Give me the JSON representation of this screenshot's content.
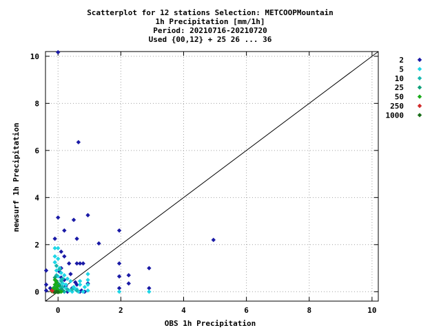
{
  "chart_data": {
    "type": "scatter",
    "title": [
      "Scatterplot for   12 stations Selection: METCOOPMountain",
      "1h Precipitation [mm/1h]",
      "Period: 20210716-20210720",
      "Used {00,12} + 25 26 ... 36"
    ],
    "xlabel": "OBS 1h Precipitation",
    "ylabel": "newsurf 1h Precipitation",
    "xlim": [
      -0.4,
      10.2
    ],
    "ylim": [
      -0.4,
      10.2
    ],
    "xticks": [
      0,
      2,
      4,
      6,
      8,
      10
    ],
    "yticks": [
      0,
      2,
      4,
      6,
      8,
      10
    ],
    "grid": true,
    "legend_position": "right-outside",
    "reference_line": "y = x",
    "series": [
      {
        "name": "2",
        "color": "#1a1aa6",
        "points": [
          [
            0,
            10.2
          ],
          [
            0.65,
            6.35
          ],
          [
            0,
            3.15
          ],
          [
            0.95,
            3.25
          ],
          [
            0.5,
            3.05
          ],
          [
            0.2,
            2.6
          ],
          [
            1.95,
            2.6
          ],
          [
            -0.1,
            2.25
          ],
          [
            0.6,
            2.25
          ],
          [
            1.3,
            2.05
          ],
          [
            4.95,
            2.2
          ],
          [
            0.1,
            1.7
          ],
          [
            0.2,
            1.5
          ],
          [
            0.6,
            1.2
          ],
          [
            0.7,
            1.2
          ],
          [
            0.8,
            1.2
          ],
          [
            1.95,
            1.2
          ],
          [
            0.35,
            1.2
          ],
          [
            0.1,
            1.0
          ],
          [
            2.9,
            1.0
          ],
          [
            0.05,
            0.85
          ],
          [
            0.4,
            0.75
          ],
          [
            0.1,
            0.6
          ],
          [
            2.25,
            0.7
          ],
          [
            1.95,
            0.65
          ],
          [
            0.2,
            0.5
          ],
          [
            0.55,
            0.4
          ],
          [
            2.25,
            0.35
          ],
          [
            0.95,
            0.35
          ],
          [
            -0.4,
            0.9
          ],
          [
            -0.4,
            0.3
          ],
          [
            -0.25,
            0.15
          ],
          [
            -0.15,
            0.05
          ],
          [
            0.15,
            0.05
          ],
          [
            0.75,
            0.05
          ],
          [
            0.85,
            0.0
          ],
          [
            1.95,
            0.15
          ],
          [
            2.9,
            0.15
          ],
          [
            0.45,
            0.15
          ],
          [
            0.6,
            0.3
          ],
          [
            0.7,
            0.0
          ],
          [
            -0.05,
            0.45
          ],
          [
            0.25,
            0.25
          ],
          [
            -0.45,
            0.05
          ],
          [
            0.05,
            0.25
          ],
          [
            0.3,
            0.0
          ]
        ]
      },
      {
        "name": "5",
        "color": "#1fd6e6",
        "points": [
          [
            -0.1,
            1.85
          ],
          [
            0.0,
            1.85
          ],
          [
            -0.1,
            1.5
          ],
          [
            0.0,
            1.4
          ],
          [
            -0.1,
            1.25
          ],
          [
            0.05,
            1.0
          ],
          [
            -0.05,
            0.9
          ],
          [
            0.1,
            0.8
          ],
          [
            0.2,
            0.7
          ],
          [
            0.0,
            0.65
          ],
          [
            0.3,
            0.55
          ],
          [
            0.1,
            0.5
          ],
          [
            0.4,
            0.45
          ],
          [
            0.7,
            0.45
          ],
          [
            0.95,
            0.75
          ],
          [
            0.95,
            0.5
          ],
          [
            0.95,
            0.3
          ],
          [
            0.85,
            0.2
          ],
          [
            0.25,
            0.15
          ],
          [
            0.55,
            0.1
          ],
          [
            0.35,
            0.05
          ],
          [
            0.65,
            0.0
          ],
          [
            0.95,
            0.05
          ],
          [
            0.2,
            0.0
          ],
          [
            0.45,
            0.0
          ],
          [
            2.9,
            0.0
          ],
          [
            1.95,
            0.0
          ],
          [
            0.1,
            0.2
          ],
          [
            0.8,
            0.0
          ],
          [
            0.5,
            0.2
          ],
          [
            0.6,
            0.1
          ],
          [
            0.15,
            0.35
          ],
          [
            0.25,
            0.3
          ],
          [
            0.7,
            0.3
          ]
        ]
      },
      {
        "name": "10",
        "color": "#17b8b0",
        "points": [
          [
            -0.05,
            1.1
          ],
          [
            0.05,
            0.95
          ],
          [
            -0.05,
            0.7
          ],
          [
            0.1,
            0.45
          ],
          [
            0.05,
            0.3
          ],
          [
            0.15,
            0.2
          ],
          [
            0.3,
            0.1
          ],
          [
            0.05,
            0.05
          ],
          [
            0.45,
            0.1
          ],
          [
            0.2,
            0.0
          ],
          [
            0.6,
            0.05
          ],
          [
            0.15,
            0.55
          ]
        ]
      },
      {
        "name": "25",
        "color": "#0fa079",
        "points": [
          [
            -0.1,
            0.6
          ],
          [
            -0.05,
            0.45
          ],
          [
            0.0,
            0.35
          ],
          [
            0.05,
            0.25
          ],
          [
            -0.1,
            0.2
          ],
          [
            0.0,
            0.1
          ],
          [
            0.1,
            0.1
          ],
          [
            -0.05,
            0.05
          ],
          [
            0.15,
            0.05
          ]
        ]
      },
      {
        "name": "50",
        "color": "#1aab1a",
        "points": [
          [
            -0.1,
            0.5
          ],
          [
            -0.05,
            0.4
          ],
          [
            -0.1,
            0.3
          ],
          [
            0.0,
            0.25
          ],
          [
            -0.05,
            0.15
          ],
          [
            -0.1,
            0.1
          ],
          [
            0.0,
            0.05
          ],
          [
            -0.2,
            0.02
          ],
          [
            0.05,
            0.0
          ],
          [
            -0.15,
            0.15
          ],
          [
            0.1,
            0.0
          ]
        ]
      },
      {
        "name": "250",
        "color": "#d12a2a",
        "points": [
          [
            -0.2,
            0.05
          ],
          [
            -0.15,
            0.0
          ]
        ]
      },
      {
        "name": "1000",
        "color": "#1a6e1a",
        "points": [
          [
            -0.05,
            0.0
          ],
          [
            0.0,
            -0.02
          ],
          [
            -0.1,
            -0.03
          ]
        ]
      }
    ]
  }
}
